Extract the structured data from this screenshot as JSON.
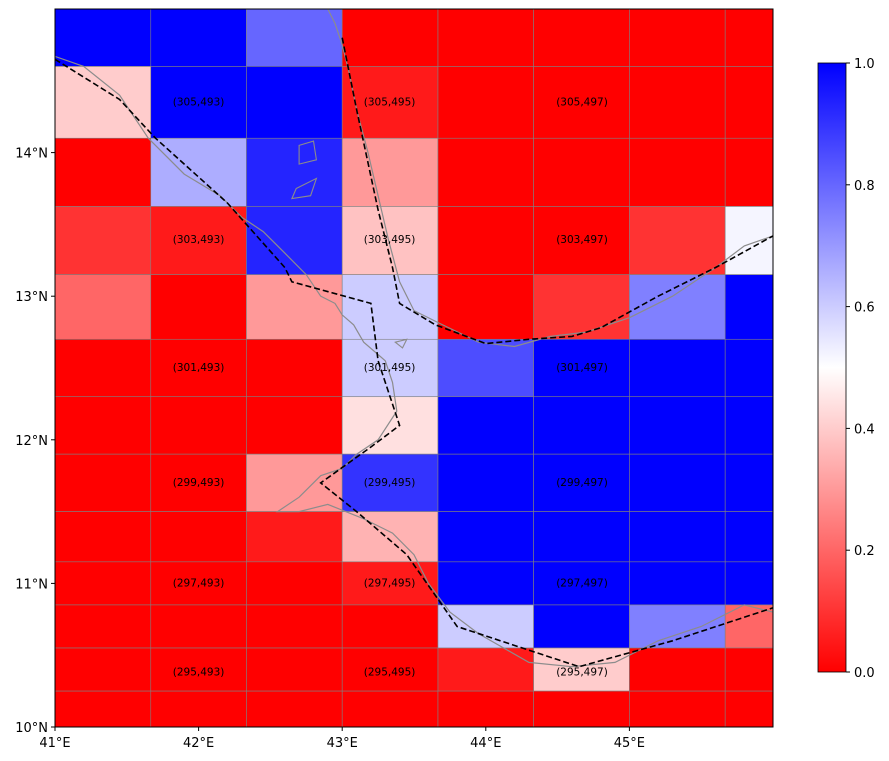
{
  "chart_data": {
    "type": "heatmap",
    "x_ticks": [
      "41°E",
      "42°E",
      "43°E",
      "44°E",
      "45°E"
    ],
    "y_ticks": [
      "10°N",
      "11°N",
      "12°N",
      "13°N",
      "14°N"
    ],
    "colorbar": {
      "ticks": [
        "0.0",
        "0.2",
        "0.4",
        "0.6",
        "0.8",
        "1.0"
      ],
      "range": [
        0,
        1
      ],
      "colormap": "bwr_r",
      "low_color": "#ff0000",
      "mid_color": "#ffffff",
      "high_color": "#0000ff"
    },
    "lon_range": [
      41,
      46
    ],
    "lat_range": [
      10,
      15
    ],
    "lon_edges": [
      41.0,
      41.667,
      42.333,
      43.0,
      43.667,
      44.333,
      45.0,
      45.667,
      46.0
    ],
    "lat_edges": [
      15.0,
      14.6,
      14.1,
      13.625,
      13.15,
      12.7,
      12.3,
      11.9,
      11.5,
      11.15,
      10.85,
      10.55,
      10.25,
      10.0
    ],
    "values": [
      [
        1.0,
        1.0,
        0.8,
        0.0,
        0.0,
        0.0,
        0.0,
        0.0
      ],
      [
        0.4,
        1.0,
        1.0,
        0.05,
        0.0,
        0.0,
        0.0,
        0.0
      ],
      [
        0.0,
        0.66,
        0.93,
        0.3,
        0.0,
        0.0,
        0.0,
        0.0
      ],
      [
        0.1,
        0.05,
        0.93,
        0.38,
        0.0,
        0.0,
        0.1,
        0.52
      ],
      [
        0.2,
        0.0,
        0.3,
        0.6,
        0.0,
        0.1,
        0.75,
        1.0
      ],
      [
        0.0,
        0.0,
        0.0,
        0.6,
        0.85,
        1.0,
        1.0,
        1.0
      ],
      [
        0.0,
        0.0,
        0.0,
        0.44,
        1.0,
        1.0,
        1.0,
        1.0
      ],
      [
        0.0,
        0.0,
        0.3,
        0.9,
        1.0,
        1.0,
        1.0,
        1.0
      ],
      [
        0.0,
        0.0,
        0.05,
        0.35,
        1.0,
        1.0,
        1.0,
        1.0
      ],
      [
        0.0,
        0.0,
        0.0,
        0.05,
        1.0,
        1.0,
        1.0,
        1.0
      ],
      [
        0.0,
        0.0,
        0.0,
        0.0,
        0.6,
        1.0,
        0.75,
        0.2
      ],
      [
        0.0,
        0.0,
        0.0,
        0.0,
        0.05,
        0.4,
        0.0,
        0.0
      ],
      [
        0.0,
        0.0,
        0.0,
        0.0,
        0.0,
        0.0,
        0.0,
        0.0
      ]
    ],
    "cell_labels": [
      {
        "text": "(305,493)",
        "lon": 42.0,
        "lat": 14.35
      },
      {
        "text": "(305,495)",
        "lon": 43.33,
        "lat": 14.35
      },
      {
        "text": "(305,497)",
        "lon": 44.67,
        "lat": 14.35
      },
      {
        "text": "(303,493)",
        "lon": 42.0,
        "lat": 13.39
      },
      {
        "text": "(303,495)",
        "lon": 43.33,
        "lat": 13.39
      },
      {
        "text": "(303,497)",
        "lon": 44.67,
        "lat": 13.39
      },
      {
        "text": "(301,493)",
        "lon": 42.0,
        "lat": 12.5
      },
      {
        "text": "(301,495)",
        "lon": 43.33,
        "lat": 12.5
      },
      {
        "text": "(301,497)",
        "lon": 44.67,
        "lat": 12.5
      },
      {
        "text": "(299,493)",
        "lon": 42.0,
        "lat": 11.7
      },
      {
        "text": "(299,495)",
        "lon": 43.33,
        "lat": 11.7
      },
      {
        "text": "(299,497)",
        "lon": 44.67,
        "lat": 11.7
      },
      {
        "text": "(297,493)",
        "lon": 42.0,
        "lat": 11.0
      },
      {
        "text": "(297,495)",
        "lon": 43.33,
        "lat": 11.0
      },
      {
        "text": "(297,497)",
        "lon": 44.67,
        "lat": 11.0
      },
      {
        "text": "(295,493)",
        "lon": 42.0,
        "lat": 10.38
      },
      {
        "text": "(295,495)",
        "lon": 43.33,
        "lat": 10.38
      },
      {
        "text": "(295,497)",
        "lon": 44.67,
        "lat": 10.38
      }
    ],
    "boundary_dashed": [
      [
        41.0,
        14.65
      ],
      [
        41.45,
        14.37
      ],
      [
        41.7,
        14.1
      ],
      [
        42.2,
        13.65
      ],
      [
        42.6,
        13.2
      ],
      [
        42.65,
        13.1
      ],
      [
        43.2,
        12.95
      ],
      [
        43.25,
        12.55
      ],
      [
        43.4,
        12.1
      ],
      [
        43.2,
        11.95
      ],
      [
        42.85,
        11.7
      ],
      [
        43.1,
        11.5
      ],
      [
        43.45,
        11.2
      ],
      [
        43.8,
        10.7
      ],
      [
        44.65,
        10.42
      ],
      [
        45.3,
        10.6
      ],
      [
        46.0,
        10.83
      ]
    ],
    "boundary_dashed_2": [
      [
        43.0,
        14.8
      ],
      [
        43.1,
        14.3
      ],
      [
        43.25,
        13.6
      ],
      [
        43.35,
        13.2
      ],
      [
        43.4,
        12.95
      ],
      [
        43.65,
        12.8
      ],
      [
        44.0,
        12.67
      ],
      [
        44.3,
        12.7
      ],
      [
        44.6,
        12.72
      ],
      [
        44.8,
        12.78
      ],
      [
        45.2,
        13.0
      ],
      [
        45.6,
        13.2
      ],
      [
        46.0,
        13.42
      ]
    ],
    "coastline": [
      [
        41.0,
        14.67
      ],
      [
        41.2,
        14.6
      ],
      [
        41.45,
        14.4
      ],
      [
        41.65,
        14.1
      ],
      [
        41.9,
        13.85
      ],
      [
        42.15,
        13.7
      ],
      [
        42.3,
        13.55
      ],
      [
        42.45,
        13.45
      ],
      [
        42.6,
        13.3
      ],
      [
        42.75,
        13.15
      ],
      [
        42.85,
        13.0
      ],
      [
        42.95,
        12.95
      ],
      [
        43.0,
        12.87
      ],
      [
        43.08,
        12.8
      ],
      [
        43.15,
        12.68
      ],
      [
        43.3,
        12.55
      ],
      [
        43.35,
        12.4
      ],
      [
        43.38,
        12.2
      ],
      [
        43.25,
        12.0
      ],
      [
        43.1,
        11.9
      ],
      [
        43.0,
        11.8
      ],
      [
        42.85,
        11.75
      ],
      [
        42.7,
        11.6
      ],
      [
        42.55,
        11.5
      ],
      [
        42.7,
        11.5
      ],
      [
        42.9,
        11.55
      ],
      [
        43.15,
        11.45
      ],
      [
        43.35,
        11.35
      ],
      [
        43.5,
        11.2
      ],
      [
        43.6,
        11.0
      ],
      [
        43.75,
        10.8
      ],
      [
        43.95,
        10.65
      ],
      [
        44.3,
        10.45
      ],
      [
        44.6,
        10.42
      ],
      [
        44.9,
        10.45
      ],
      [
        45.2,
        10.6
      ],
      [
        45.5,
        10.7
      ],
      [
        45.8,
        10.85
      ],
      [
        46.0,
        10.8
      ]
    ],
    "coastline_2": [
      [
        42.9,
        15.0
      ],
      [
        42.95,
        14.9
      ],
      [
        43.0,
        14.75
      ],
      [
        43.05,
        14.55
      ],
      [
        43.1,
        14.3
      ],
      [
        43.18,
        14.0
      ],
      [
        43.25,
        13.7
      ],
      [
        43.32,
        13.4
      ],
      [
        43.4,
        13.1
      ],
      [
        43.5,
        12.9
      ],
      [
        43.7,
        12.8
      ],
      [
        43.95,
        12.68
      ],
      [
        44.2,
        12.65
      ],
      [
        44.45,
        12.72
      ],
      [
        44.7,
        12.75
      ],
      [
        45.0,
        12.85
      ],
      [
        45.3,
        13.0
      ],
      [
        45.6,
        13.2
      ],
      [
        45.8,
        13.35
      ],
      [
        46.0,
        13.42
      ]
    ],
    "islands": [
      [
        [
          42.7,
          14.05
        ],
        [
          42.8,
          14.08
        ],
        [
          42.82,
          13.95
        ],
        [
          42.7,
          13.92
        ]
      ],
      [
        [
          42.68,
          13.75
        ],
        [
          42.82,
          13.82
        ],
        [
          42.78,
          13.7
        ],
        [
          42.65,
          13.68
        ]
      ],
      [
        [
          43.37,
          12.68
        ],
        [
          43.45,
          12.7
        ],
        [
          43.42,
          12.64
        ]
      ]
    ]
  }
}
